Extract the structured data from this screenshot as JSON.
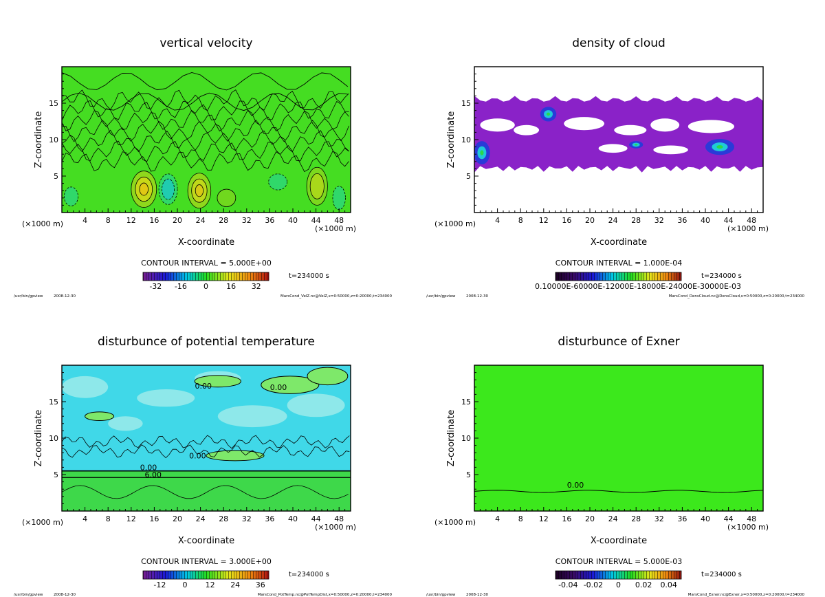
{
  "meta": {
    "program": "/usr/bin/gpview",
    "date": "2008-12-30",
    "time_label": "t=234000 s"
  },
  "chart_data": [
    {
      "type": "heatmap",
      "title": "vertical velocity",
      "xlabel": "X-coordinate",
      "ylabel": "Z-coordinate",
      "xunit_left": "(×1000 m)",
      "xunit_right": "(×1000 m)",
      "xlim": [
        0,
        50
      ],
      "ylim": [
        0,
        20
      ],
      "xticks": [
        4,
        8,
        12,
        16,
        20,
        24,
        28,
        32,
        36,
        40,
        44,
        48
      ],
      "yticks": [
        5,
        10,
        15
      ],
      "contour_interval": "CONTOUR INTERVAL = 5.000E+00",
      "colorbar_ticks": [
        "-32",
        "-16",
        "0",
        "16",
        "32"
      ],
      "colorbar_range": [
        -40,
        40
      ],
      "contour_labels": [],
      "source": "MarsCond_VelZ.nc@VelZ,x=0:50000,z=0:20000,t=234000",
      "field": "velz",
      "cloud_band": [
        6,
        16
      ]
    },
    {
      "type": "heatmap",
      "title": "density of cloud",
      "xlabel": "X-coordinate",
      "ylabel": "Z-coordinate",
      "xunit_left": "(×1000 m)",
      "xunit_right": "(×1000 m)",
      "xlim": [
        0,
        50
      ],
      "ylim": [
        0,
        20
      ],
      "xticks": [
        4,
        8,
        12,
        16,
        20,
        24,
        28,
        32,
        36,
        40,
        44,
        48
      ],
      "yticks": [
        5,
        10,
        15
      ],
      "contour_interval": "CONTOUR INTERVAL = 1.000E-04",
      "colorbar_ticks": [
        "0.10000E-60000E-12000E-18000E-24000E-30000E-03"
      ],
      "colorbar_range": [
        0,
        0.003
      ],
      "contour_labels": [],
      "source": "MarsCond_DensCloud.nc@DensCloud,x=0:50000,z=0:20000,t=234000",
      "field": "cloud",
      "cloud_band": [
        5.5,
        16
      ]
    },
    {
      "type": "heatmap",
      "title": "disturbunce of potential temperature",
      "xlabel": "X-coordinate",
      "ylabel": "Z-coordinate",
      "xunit_left": "(×1000 m)",
      "xunit_right": "(×1000 m)",
      "xlim": [
        0,
        50
      ],
      "ylim": [
        0,
        20
      ],
      "xticks": [
        4,
        8,
        12,
        16,
        20,
        24,
        28,
        32,
        36,
        40,
        44,
        48
      ],
      "yticks": [
        5,
        10,
        15
      ],
      "contour_interval": "CONTOUR INTERVAL = 3.000E+00",
      "colorbar_ticks": [
        "-12",
        "0",
        "12",
        "24",
        "36"
      ],
      "colorbar_range": [
        -20,
        40
      ],
      "contour_labels": [
        {
          "text": "0.00",
          "x": 24.5,
          "y": 16.8
        },
        {
          "text": "0.00",
          "x": 37.5,
          "y": 16.6
        },
        {
          "text": "0.00",
          "x": 23.5,
          "y": 7.2
        },
        {
          "text": "0.00",
          "x": 15.0,
          "y": 5.6
        },
        {
          "text": "6.00",
          "x": 15.8,
          "y": 4.6
        }
      ],
      "source": "MarsCond_PotTemp.nc@PotTempDist,x=0:50000,z=0:20000,t=234000",
      "field": "ptemp",
      "boundary_z": 5.5
    },
    {
      "type": "heatmap",
      "title": "disturbunce of Exner",
      "xlabel": "X-coordinate",
      "ylabel": "Z-coordinate",
      "xunit_left": "(×1000 m)",
      "xunit_right": "(×1000 m)",
      "xlim": [
        0,
        50
      ],
      "ylim": [
        0,
        20
      ],
      "xticks": [
        4,
        8,
        12,
        16,
        20,
        24,
        28,
        32,
        36,
        40,
        44,
        48
      ],
      "yticks": [
        5,
        10,
        15
      ],
      "contour_interval": "CONTOUR INTERVAL = 5.000E-03",
      "colorbar_ticks": [
        "-0.04",
        "-0.02",
        "0",
        "0.02",
        "0.04"
      ],
      "colorbar_range": [
        -0.05,
        0.05
      ],
      "contour_labels": [
        {
          "text": "0.00",
          "x": 17.5,
          "y": 3.2
        }
      ],
      "source": "MarsCond_Exner.nc@Exner,x=0:50000,z=0:20000,t=234000",
      "field": "exner",
      "contour_z": 2.7
    }
  ]
}
